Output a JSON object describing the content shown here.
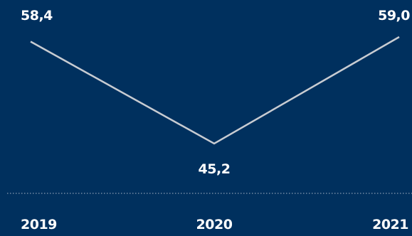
{
  "colors": {
    "background": "#00305e",
    "line": "#c8ccd2",
    "text": "#ffffff",
    "divider": "#8a9bb2"
  },
  "chart_data": {
    "type": "line",
    "categories": [
      "2019",
      "2020",
      "2021"
    ],
    "values": [
      58.4,
      45.2,
      59.0
    ],
    "value_labels": [
      "58,4",
      "45,2",
      "59,0"
    ],
    "grid": false,
    "legend": "none"
  }
}
